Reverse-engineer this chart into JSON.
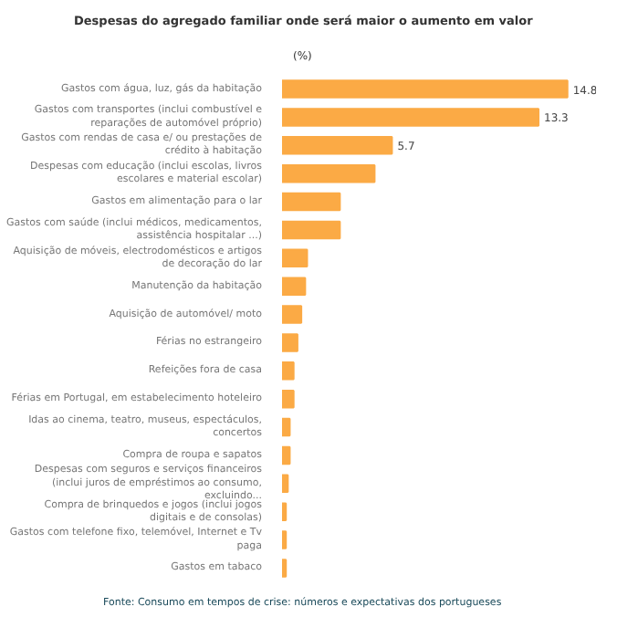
{
  "chart_data": {
    "type": "bar",
    "orientation": "horizontal",
    "title": "Despesas do agregado familiar onde será maior o aumento em valor",
    "subtitle": "(%)",
    "categories": [
      "Gastos com água, luz, gás da habitação",
      "Gastos com transportes (inclui combustível e reparações de automóvel próprio)",
      "Gastos com rendas de casa e/ ou prestações de crédito à habitação",
      "Despesas com educação (inclui escolas, livros escolares e material escolar)",
      "Gastos em alimentação para o lar",
      "Gastos com saúde (inclui médicos, medicamentos, assistência hospitalar ...)",
      "Aquisição de móveis, electrodomésticos e artigos de decoração do lar",
      "Manutenção da habitação",
      "Aquisição de automóvel/ moto",
      "Férias no estrangeiro",
      "Refeições fora de casa",
      "Férias em Portugal, em estabelecimento hoteleiro",
      "Idas ao cinema, teatro, museus, espectáculos, concertos",
      "Compra de roupa e sapatos",
      "Despesas com seguros e serviços financeiros (inclui juros de empréstimos ao consumo, excluindo...",
      "Compra de brinquedos e jogos (inclui jogos digitais e de consolas)",
      "Gastos com telefone fixo, telemóvel, Internet e Tv paga",
      "Gastos em tabaco"
    ],
    "values": [
      14.8,
      13.3,
      5.7,
      4.8,
      3.0,
      3.0,
      1.3,
      1.2,
      1.0,
      0.8,
      0.6,
      0.6,
      0.4,
      0.4,
      0.3,
      0.2,
      0.2,
      0.2
    ],
    "value_labels": [
      "14.8",
      "13.3",
      "5.7",
      null,
      null,
      null,
      null,
      null,
      null,
      null,
      null,
      null,
      null,
      null,
      null,
      null,
      null,
      null
    ],
    "color": "#fbaa45",
    "grid": false,
    "annotations": [
      "Fonte: Consumo em tempos de crise: números e expectativas dos portugueses"
    ]
  }
}
